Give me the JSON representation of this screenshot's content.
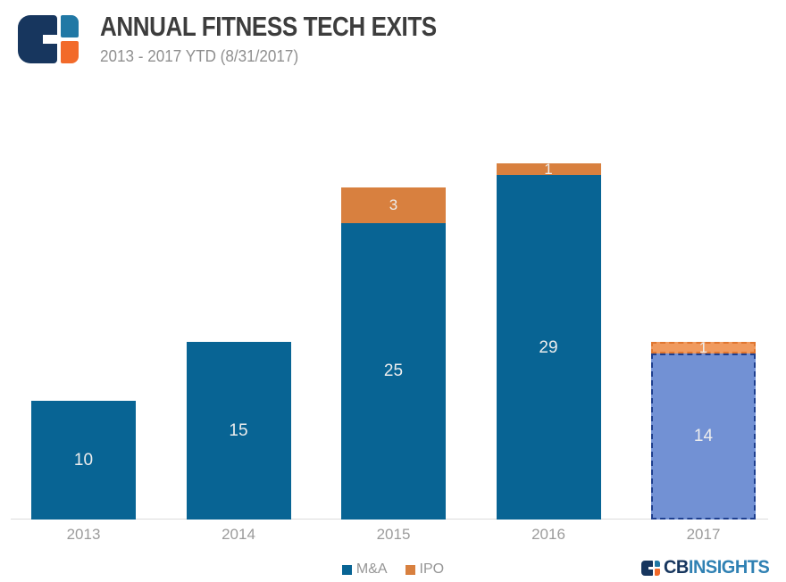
{
  "header": {
    "title": "ANNUAL FITNESS TECH EXITS",
    "subtitle": "2013 - 2017 YTD (8/31/2017)"
  },
  "chart_data": {
    "type": "bar",
    "stacked": true,
    "title": "ANNUAL FITNESS TECH EXITS",
    "subtitle": "2013 - 2017 YTD (8/31/2017)",
    "categories": [
      "2013",
      "2014",
      "2015",
      "2016",
      "2017"
    ],
    "series": [
      {
        "name": "M&A",
        "color": "#086494",
        "values": [
          10,
          15,
          25,
          29,
          14
        ]
      },
      {
        "name": "IPO",
        "color": "#d8803f",
        "values": [
          0,
          0,
          3,
          1,
          1
        ]
      }
    ],
    "projected": {
      "category": "2017",
      "style": "dashed-light (year-to-date)",
      "ma_fill": "#7291d4",
      "ma_border": "#1e3f8f",
      "ipo_fill": "#f09a5e",
      "ipo_border": "#e0762f"
    },
    "value_labels": true,
    "xlabel": "",
    "ylabel": "",
    "ylim": [
      0,
      31
    ],
    "grid": false,
    "legend_position": "bottom"
  },
  "legend": {
    "items": [
      {
        "label": "M&A",
        "color": "#086494"
      },
      {
        "label": "IPO",
        "color": "#d8803f"
      }
    ]
  },
  "branding": {
    "bold": "CB",
    "light": "INSIGHTS"
  }
}
